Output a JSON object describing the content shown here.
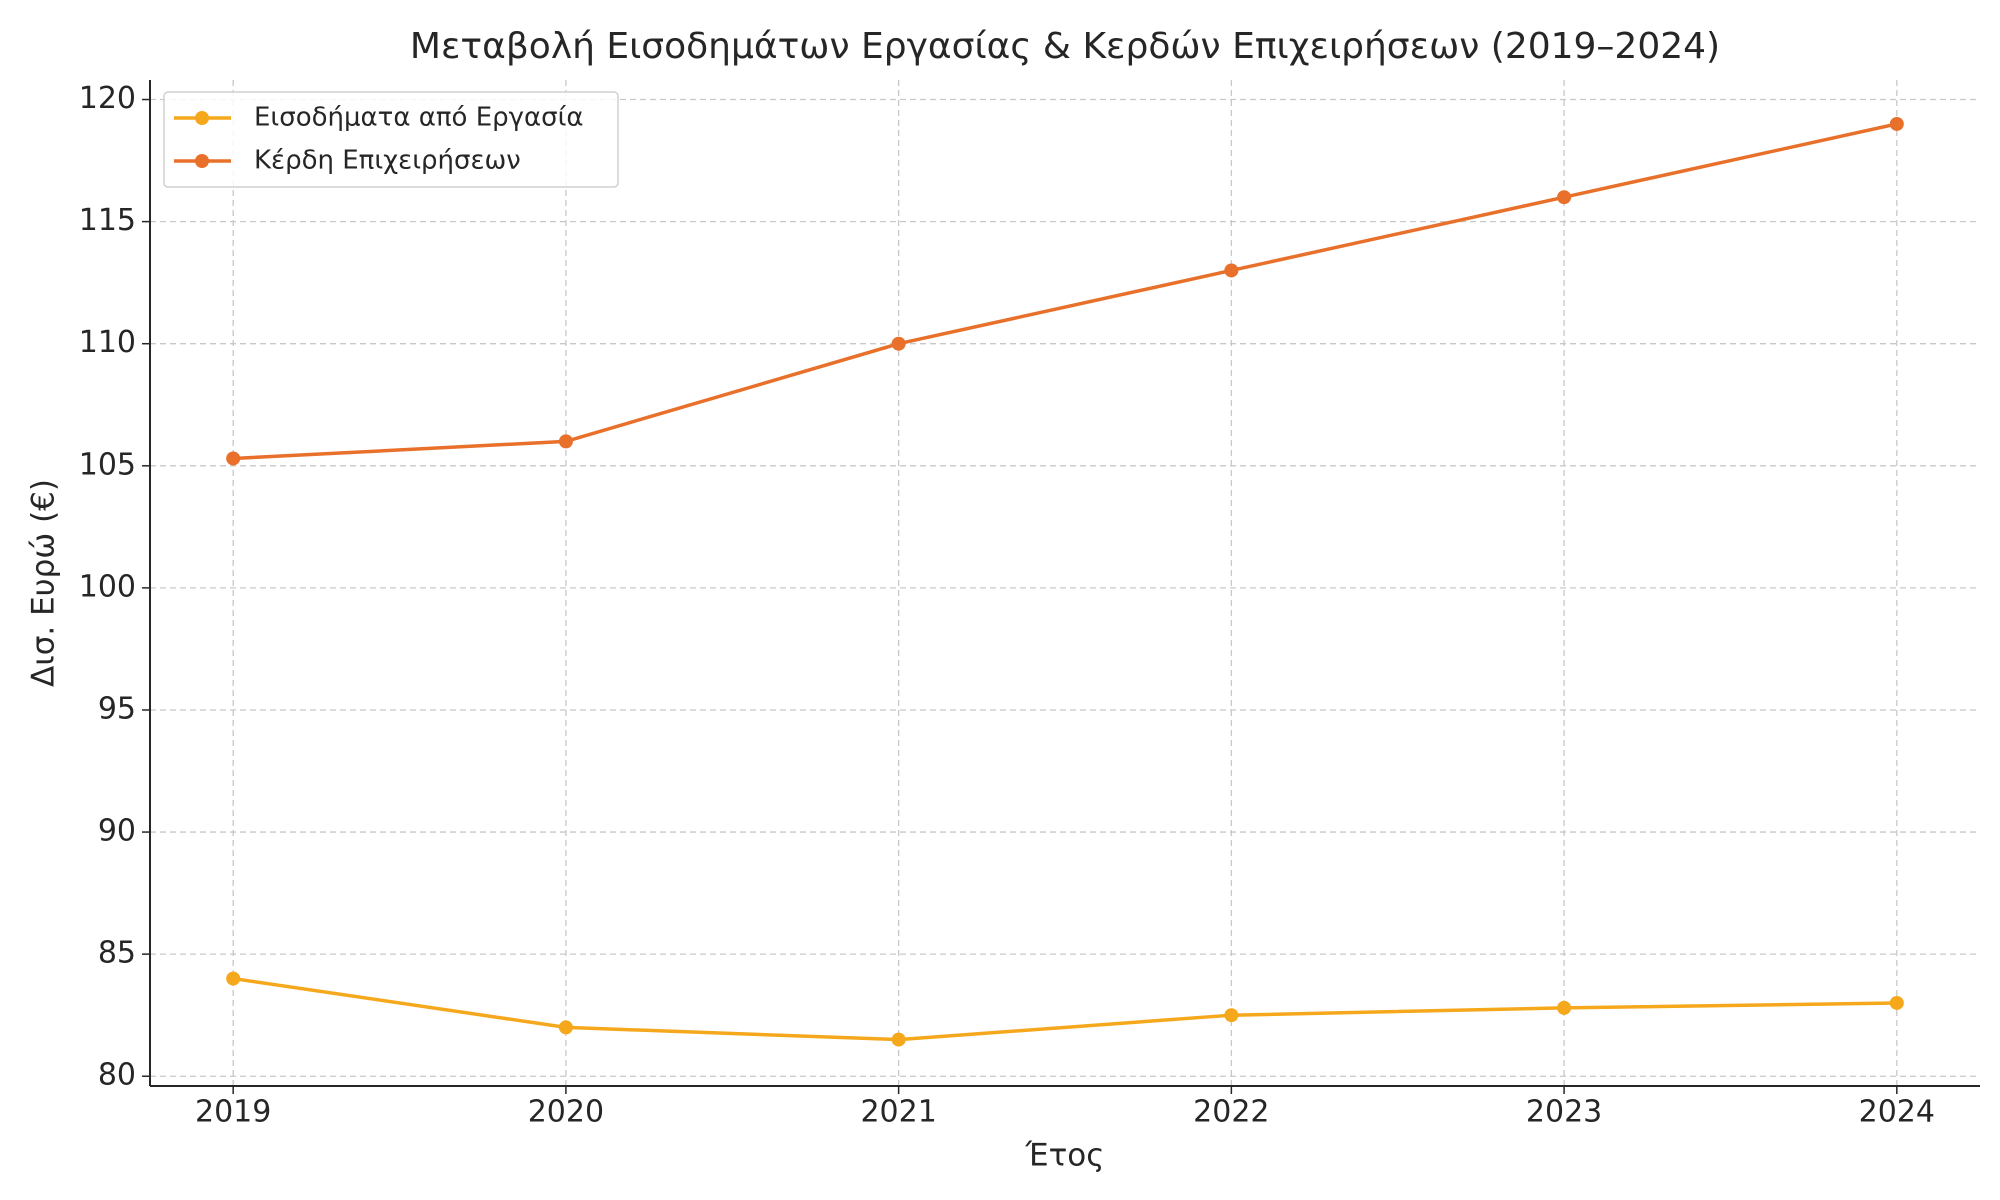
{
  "chart_data": {
    "type": "line",
    "title": "Μεταβολή Εισοδημάτων Εργασίας & Κερδών Επιχειρήσεων (2019–2024)",
    "x_label": "Έτος",
    "y_label": "Δισ. Ευρώ (€)",
    "x": [
      2019,
      2020,
      2021,
      2022,
      2023,
      2024
    ],
    "series": [
      {
        "name": "Εισοδήματα από Εργασία",
        "color": "#f5a81c",
        "values": [
          84,
          82,
          81.5,
          82.5,
          82.8,
          83
        ]
      },
      {
        "name": "Κέρδη Επιχειρήσεων",
        "color": "#e8702a",
        "values": [
          105.3,
          106,
          110,
          113,
          116,
          119
        ]
      }
    ],
    "xlim": [
      2018.75,
      2024.25
    ],
    "xticks": [
      2019,
      2020,
      2021,
      2022,
      2023,
      2024
    ],
    "ylim": [
      79.6,
      120.8
    ],
    "yticks": [
      80,
      85,
      90,
      95,
      100,
      105,
      110,
      115,
      120
    ],
    "grid": true,
    "legend": "upper-left"
  }
}
